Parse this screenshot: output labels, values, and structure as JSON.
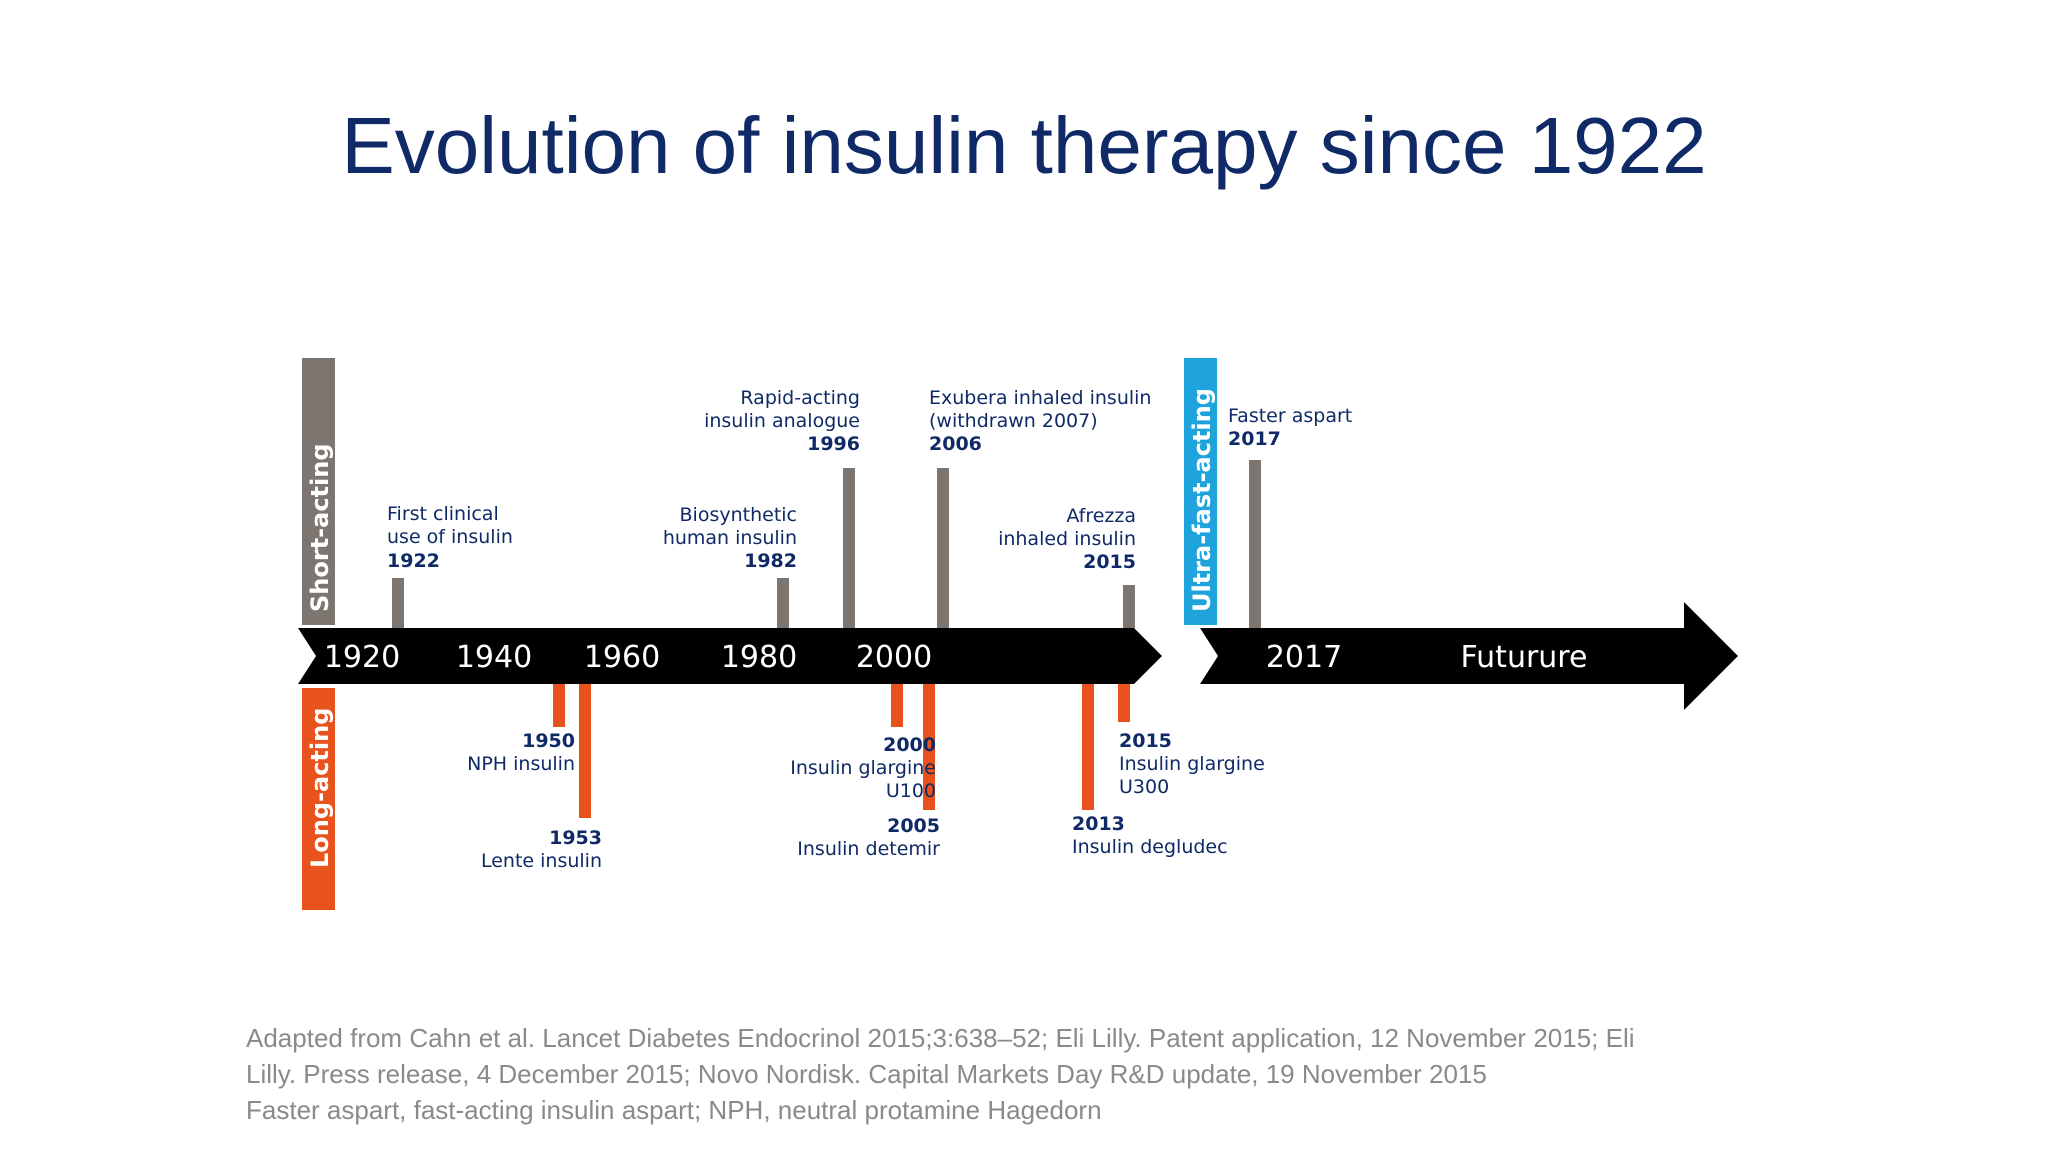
{
  "slide": {
    "title": "Evolution of insulin therapy since 1922",
    "references": [
      "Adapted from Cahn et al. Lancet Diabetes Endocrinol 2015;3:638–52; Eli Lilly. Patent application, 12 November 2015; Eli",
      "Lilly. Press release, 4 December 2015; Novo Nordisk. Capital Markets Day R&D  update, 19 November 2015",
      "Faster aspart, fast-acting insulin aspart; NPH, neutral protamine Hagedorn"
    ]
  },
  "colors": {
    "title": "#0f2a66",
    "short_acting": "#7d7670",
    "long_acting": "#e8521c",
    "ultra_fast_acting": "#1ea3dc",
    "arrow": "#000000",
    "label": "#0f2a66",
    "reference_text": "#8a8a8a"
  },
  "timeline": {
    "category_labels": {
      "short_acting": "Short-acting",
      "long_acting": "Long-acting",
      "ultra_fast_acting": "Ultra-fast-acting"
    },
    "axis_ticks": [
      "1920",
      "1940",
      "1960",
      "1980",
      "2000"
    ],
    "future_ticks": [
      "2017",
      "Futurure"
    ],
    "short_acting_events": [
      {
        "year": "1922",
        "lines": [
          "First clinical",
          "use of insulin"
        ]
      },
      {
        "year": "1982",
        "lines": [
          "Biosynthetic",
          "human insulin"
        ]
      },
      {
        "year": "1996",
        "lines": [
          "Rapid-acting",
          "insulin analogue"
        ]
      },
      {
        "year": "2006",
        "lines": [
          "Exubera inhaled insulin",
          "(withdrawn 2007)"
        ]
      },
      {
        "year": "2015",
        "lines": [
          "Afrezza",
          "inhaled insulin"
        ]
      }
    ],
    "ultra_fast_events": [
      {
        "year": "2017",
        "lines": [
          "Faster aspart"
        ]
      }
    ],
    "long_acting_events": [
      {
        "year": "1950",
        "lines": [
          "NPH insulin"
        ]
      },
      {
        "year": "1953",
        "lines": [
          "Lente insulin"
        ]
      },
      {
        "year": "2000",
        "lines": [
          "Insulin glargine",
          "U100"
        ]
      },
      {
        "year": "2005",
        "lines": [
          "Insulin detemir"
        ]
      },
      {
        "year": "2013",
        "lines": [
          "Insulin degludec"
        ]
      },
      {
        "year": "2015",
        "lines": [
          "Insulin glargine",
          "U300"
        ]
      }
    ]
  }
}
